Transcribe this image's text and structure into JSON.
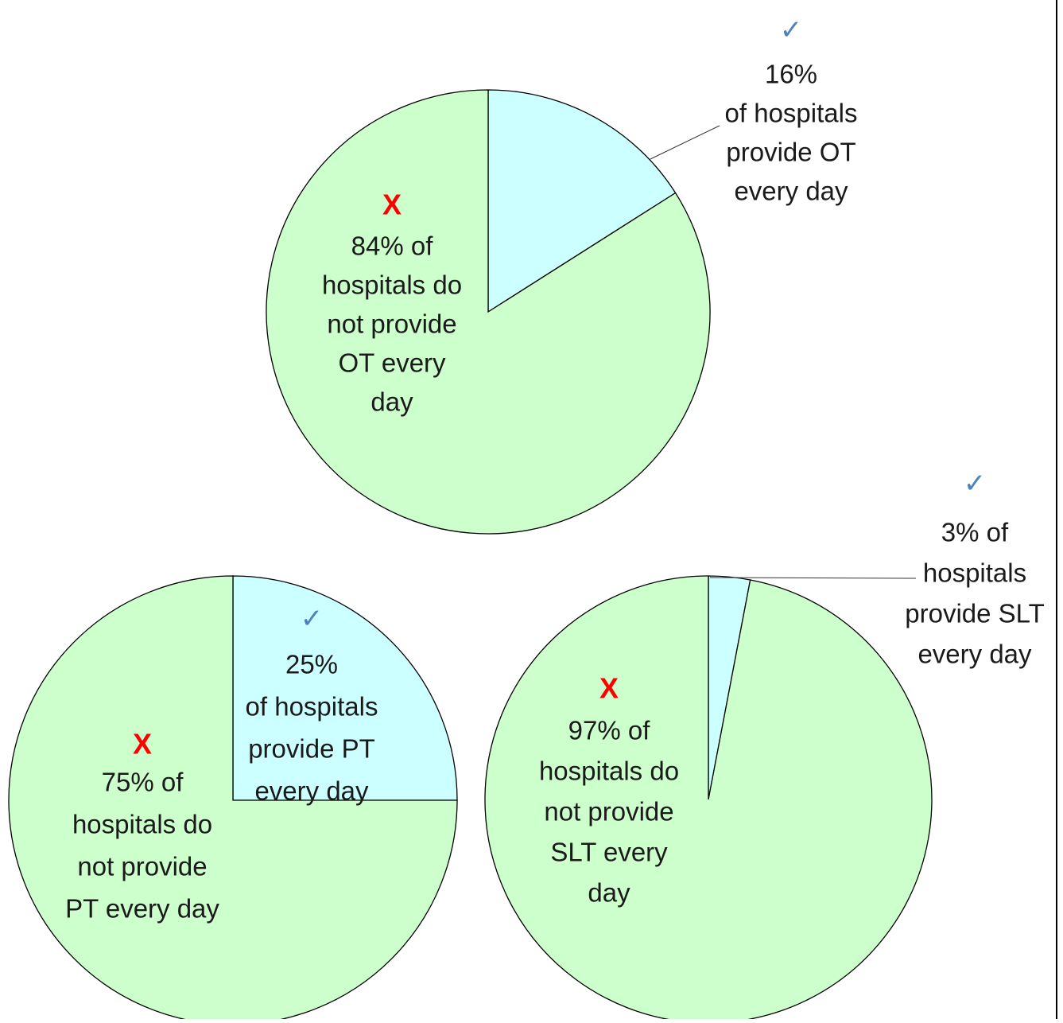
{
  "colors": {
    "no_slice": "#ccffcc",
    "yes_slice": "#ccffff",
    "x_mark": "#ff0000",
    "check_mark": "#4f81bd",
    "outline": "#000000"
  },
  "chart_data": [
    {
      "type": "pie",
      "slices": [
        {
          "value": 16,
          "color": "#ccffff",
          "marker": "✓",
          "label_lines": [
            "16%",
            "of hospitals",
            "provide OT",
            "every day"
          ]
        },
        {
          "value": 84,
          "color": "#ccffcc",
          "marker": "X",
          "label_lines": [
            "84% of",
            "hospitals do",
            "not provide",
            "OT every",
            "day"
          ]
        }
      ]
    },
    {
      "type": "pie",
      "slices": [
        {
          "value": 25,
          "color": "#ccffff",
          "marker": "✓",
          "label_lines": [
            "25%",
            "of hospitals",
            "provide PT",
            "every day"
          ]
        },
        {
          "value": 75,
          "color": "#ccffcc",
          "marker": "X",
          "label_lines": [
            "75% of",
            "hospitals do",
            "not provide",
            "PT every day"
          ]
        }
      ]
    },
    {
      "type": "pie",
      "slices": [
        {
          "value": 3,
          "color": "#ccffff",
          "marker": "✓",
          "label_lines": [
            "3% of",
            "hospitals",
            "provide SLT",
            "every day"
          ]
        },
        {
          "value": 97,
          "color": "#ccffcc",
          "marker": "X",
          "label_lines": [
            "97% of",
            "hospitals do",
            "not provide",
            "SLT every",
            "day"
          ]
        }
      ]
    }
  ]
}
